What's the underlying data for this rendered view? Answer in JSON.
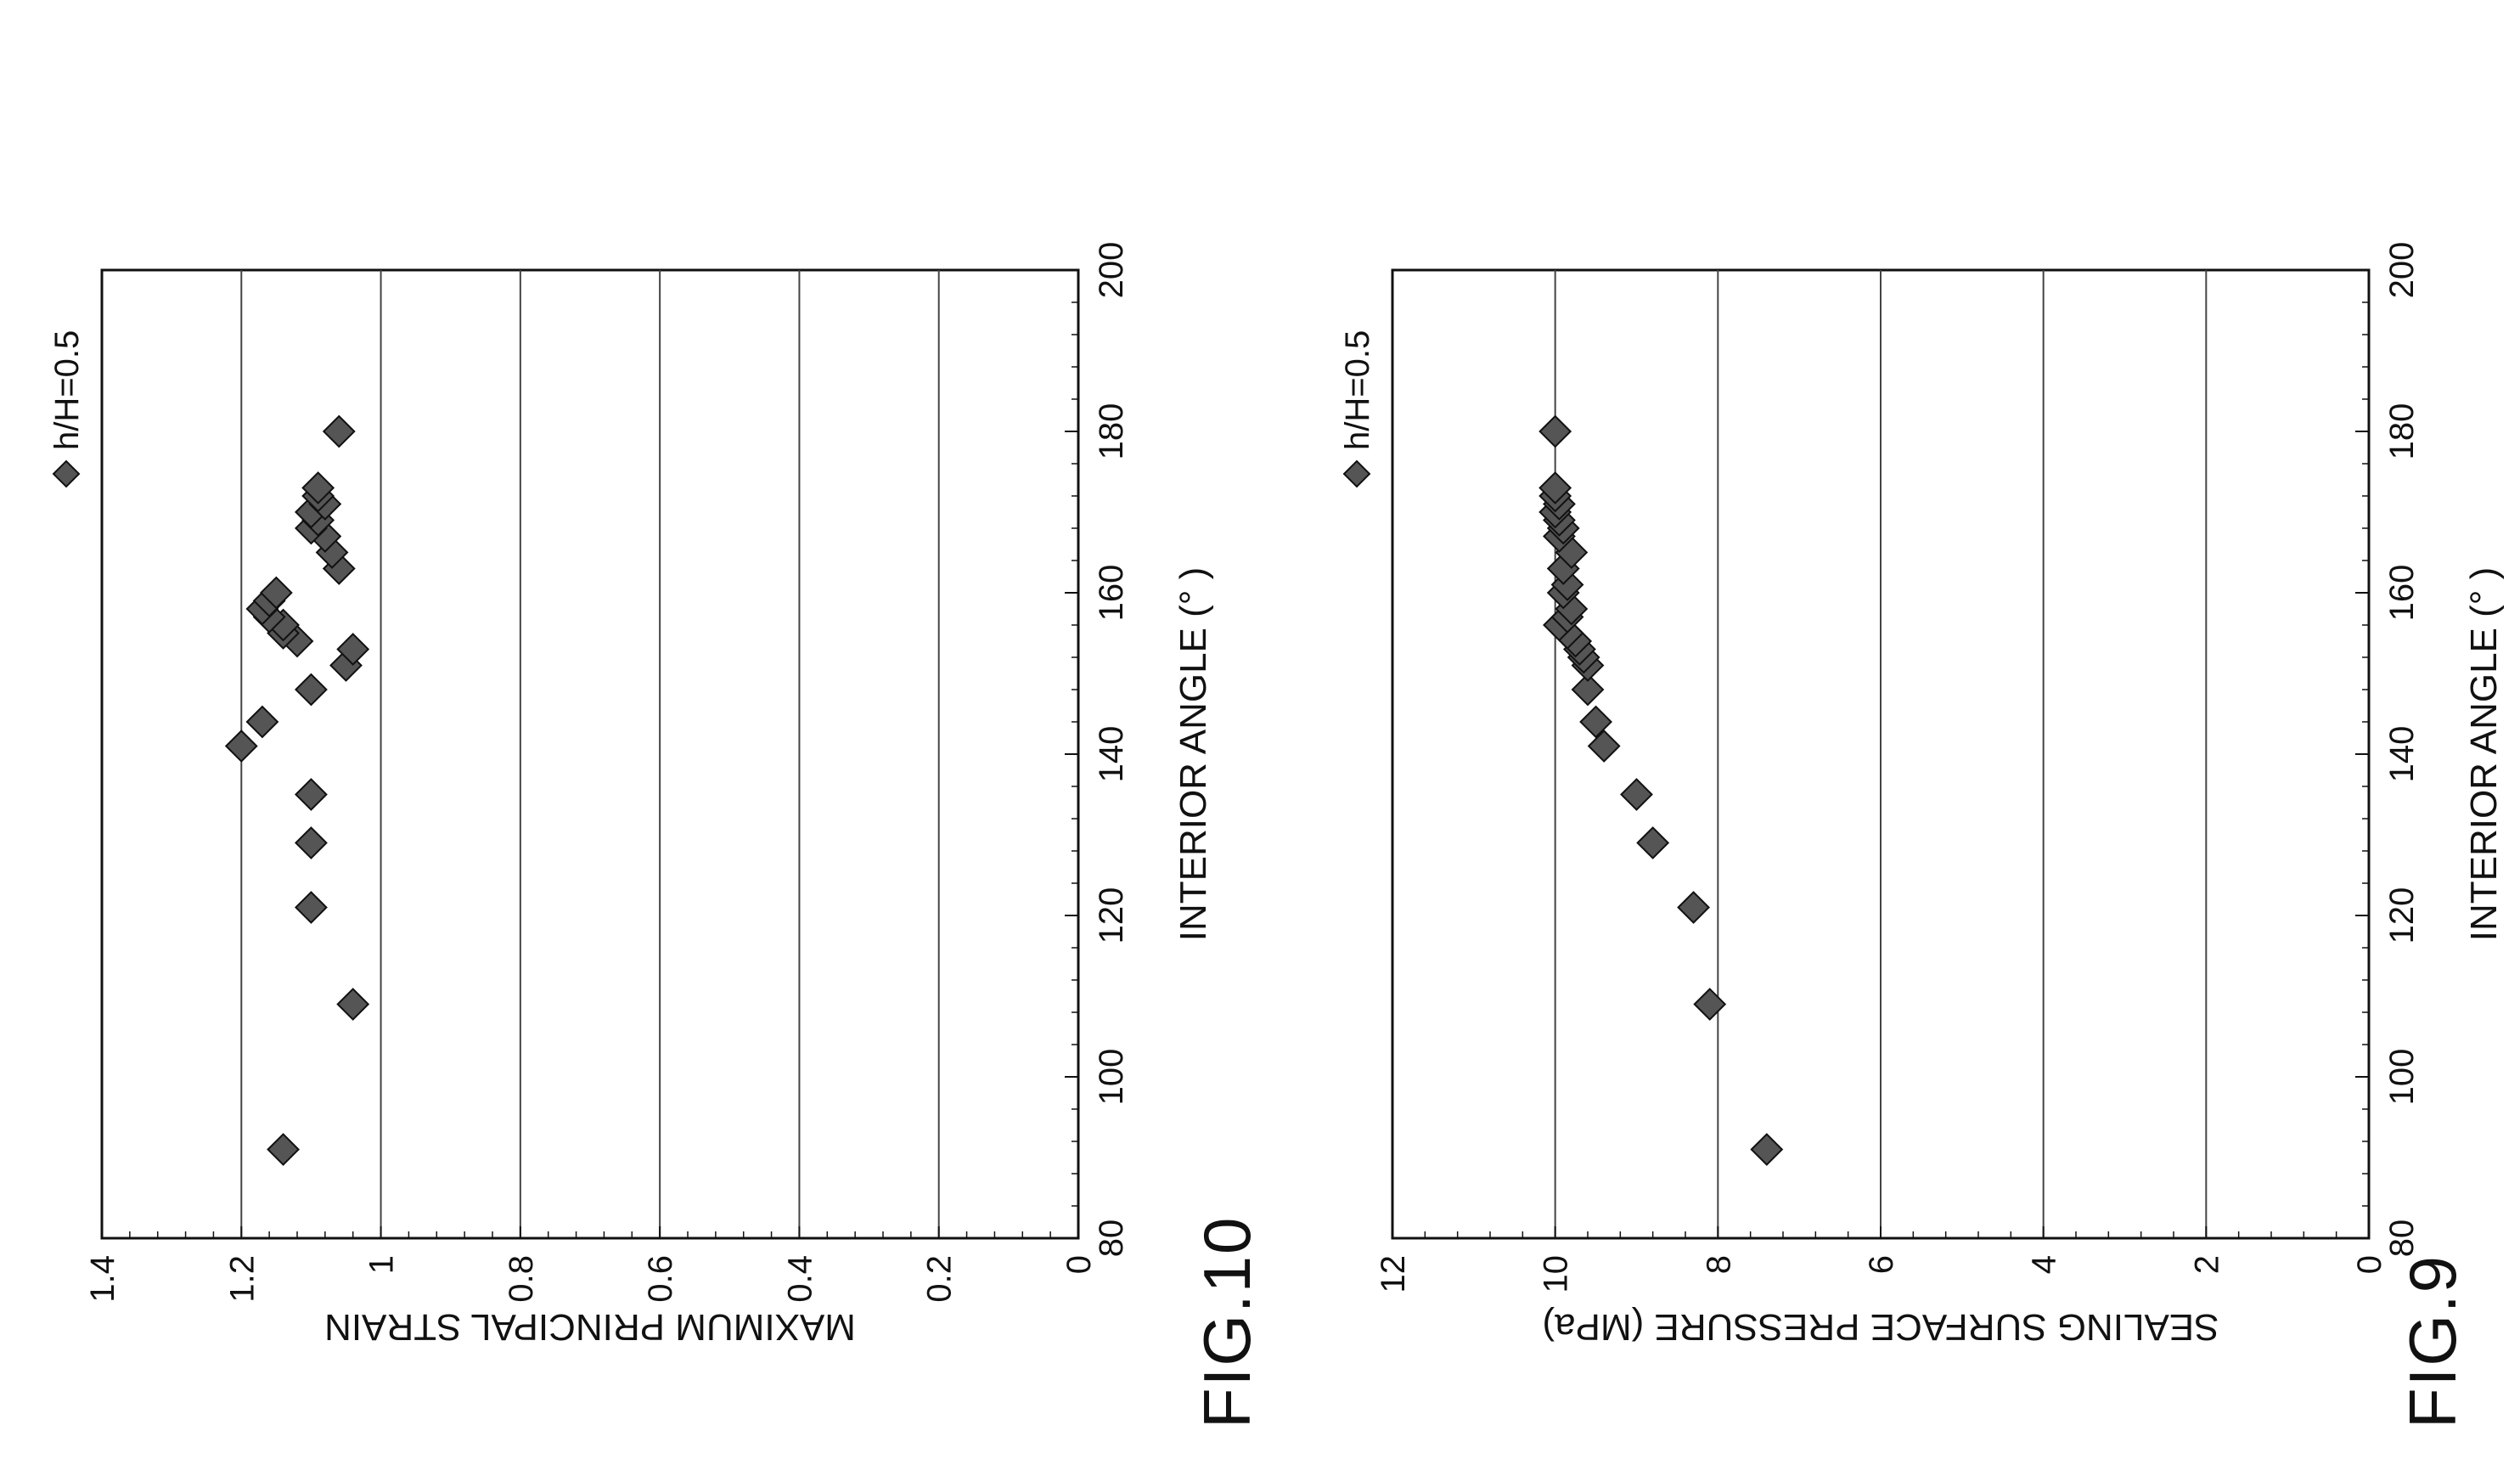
{
  "figures": [
    {
      "title": "FIG.9"
    },
    {
      "title": "FIG.10"
    }
  ],
  "chart_data": [
    {
      "type": "scatter",
      "title": "",
      "xlabel": "INTERIOR ANGLE (° )",
      "ylabel": "SEALING SURFACE PRESSURE (MPa)",
      "xlim": [
        80,
        200
      ],
      "ylim": [
        0,
        12
      ],
      "x_ticks": [
        "80",
        "100",
        "120",
        "140",
        "160",
        "180",
        "200"
      ],
      "y_ticks": [
        "0",
        "2",
        "4",
        "6",
        "8",
        "10",
        "12"
      ],
      "grid": "horizontal",
      "legend_position": "top-right",
      "series": [
        {
          "name": "h/H=0.5",
          "marker": "diamond",
          "color": "#555555",
          "x": [
            91,
            109,
            121,
            129,
            135,
            141,
            144,
            148,
            151,
            152,
            153,
            154,
            155,
            156,
            157,
            158,
            160,
            161,
            163,
            165,
            167,
            168,
            169,
            170,
            171,
            172,
            173,
            180
          ],
          "y": [
            7.4,
            8.1,
            8.3,
            8.8,
            9.0,
            9.4,
            9.5,
            9.6,
            9.6,
            9.65,
            9.7,
            9.75,
            9.85,
            9.95,
            9.85,
            9.8,
            9.9,
            9.85,
            9.9,
            9.8,
            9.95,
            9.9,
            9.95,
            10.0,
            9.95,
            10.0,
            10.0,
            10.0
          ]
        }
      ]
    },
    {
      "type": "scatter",
      "title": "",
      "xlabel": "INTERIOR ANGLE (° )",
      "ylabel": "MAXIMUM PRINCIPAL STRAIN",
      "xlim": [
        80,
        200
      ],
      "ylim": [
        0,
        1.4
      ],
      "x_ticks": [
        "80",
        "100",
        "120",
        "140",
        "160",
        "180",
        "200"
      ],
      "y_ticks": [
        "0",
        "0.2",
        "0.4",
        "0.6",
        "0.8",
        "1",
        "1.2",
        "1.4"
      ],
      "grid": "horizontal",
      "legend_position": "top-right",
      "series": [
        {
          "name": "h/H=0.5",
          "marker": "diamond",
          "color": "#555555",
          "x": [
            91,
            109,
            121,
            129,
            135,
            141,
            144,
            148,
            151,
            153,
            154,
            155,
            156,
            157,
            158,
            159,
            160,
            163,
            165,
            167,
            168,
            169,
            170,
            171,
            172,
            173,
            180
          ],
          "y": [
            1.14,
            1.04,
            1.1,
            1.1,
            1.1,
            1.2,
            1.17,
            1.1,
            1.05,
            1.04,
            1.12,
            1.14,
            1.14,
            1.16,
            1.17,
            1.16,
            1.15,
            1.06,
            1.07,
            1.08,
            1.1,
            1.09,
            1.1,
            1.08,
            1.09,
            1.09,
            1.06
          ]
        }
      ]
    }
  ]
}
